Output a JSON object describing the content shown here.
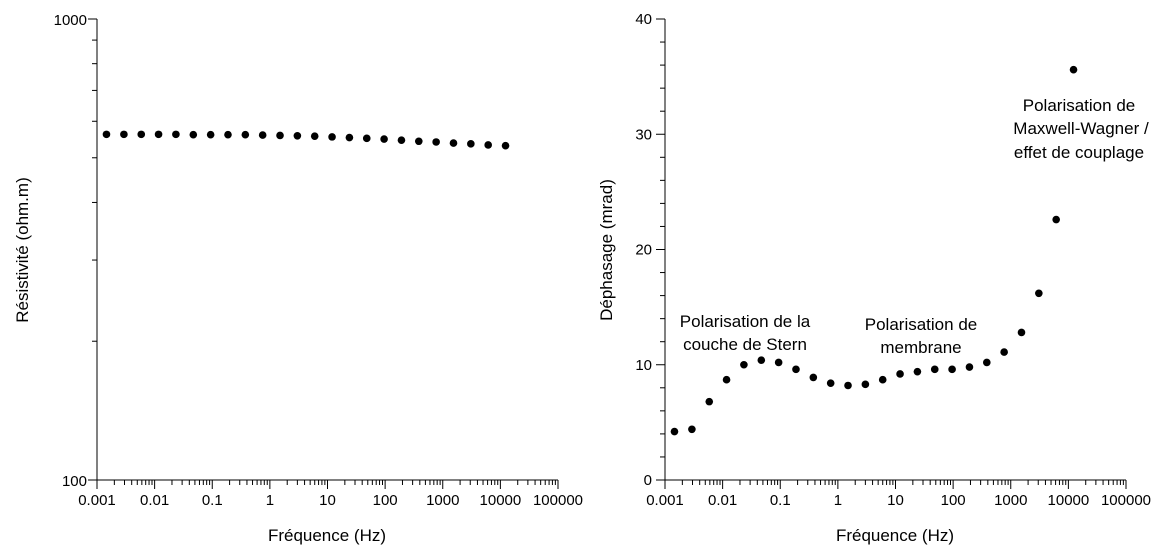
{
  "chart_data": [
    {
      "type": "scatter",
      "xlabel": "Fréquence (Hz)",
      "ylabel": "Résistivité (ohm.m)",
      "xscale": "log",
      "yscale": "log",
      "xlim": [
        0.001,
        100000
      ],
      "ylim": [
        100,
        1000
      ],
      "grid": false,
      "xtick_labels": [
        "0.001",
        "0.01",
        "0.1",
        "1",
        "10",
        "100",
        "1000",
        "10000",
        "100000"
      ],
      "ytick_labels": [
        "1000",
        "100"
      ],
      "series": [
        {
          "x": [
            0.00146,
            0.00293,
            0.00586,
            0.0117,
            0.0234,
            0.0469,
            0.0938,
            0.1875,
            0.375,
            0.75,
            1.5,
            3,
            6,
            12,
            24,
            48,
            96,
            192,
            384,
            768,
            1536,
            3072,
            6144,
            12288
          ],
          "y": [
            562,
            562,
            562,
            562,
            562,
            561,
            561,
            561,
            561,
            560,
            559,
            558,
            557,
            555,
            553,
            551,
            549,
            546,
            543,
            541,
            538,
            536,
            533,
            531
          ]
        }
      ]
    },
    {
      "type": "scatter",
      "xlabel": "Fréquence (Hz)",
      "ylabel": "Déphasage (mrad)",
      "xscale": "log",
      "xlim": [
        0.001,
        100000
      ],
      "ylim": [
        0,
        40
      ],
      "grid": false,
      "xtick_labels": [
        "0.001",
        "0.01",
        "0.1",
        "1",
        "10",
        "100",
        "1000",
        "10000",
        "100000"
      ],
      "ytick_labels": [
        "0",
        "10",
        "20",
        "30",
        "40"
      ],
      "series": [
        {
          "x": [
            0.00146,
            0.00293,
            0.00586,
            0.0117,
            0.0234,
            0.0469,
            0.0938,
            0.1875,
            0.375,
            0.75,
            1.5,
            3,
            6,
            12,
            24,
            48,
            96,
            192,
            384,
            768,
            1536,
            3072,
            6144,
            12288
          ],
          "y": [
            4.2,
            4.4,
            6.8,
            8.7,
            10.0,
            10.4,
            10.2,
            9.6,
            8.9,
            8.4,
            8.2,
            8.3,
            8.7,
            9.2,
            9.4,
            9.6,
            9.6,
            9.8,
            10.2,
            11.1,
            12.8,
            16.2,
            22.6,
            35.6
          ]
        }
      ],
      "annotations": [
        {
          "lines": [
            "Polarisation de la",
            "couche de Stern"
          ]
        },
        {
          "lines": [
            "Polarisation de",
            "membrane"
          ]
        },
        {
          "lines": [
            "Polarisation de",
            "Maxwell-Wagner /",
            "effet de couplage"
          ]
        }
      ]
    }
  ]
}
